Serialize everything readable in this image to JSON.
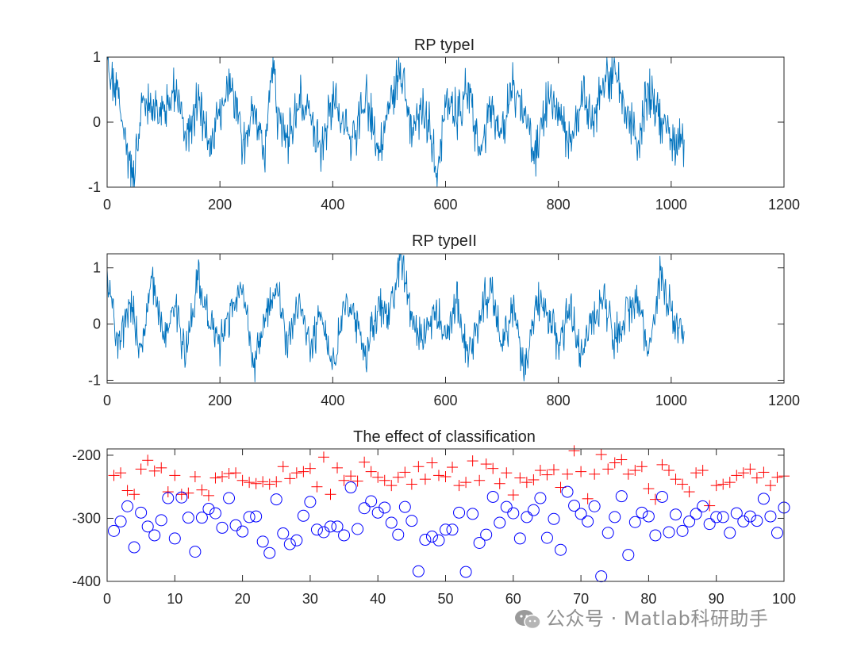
{
  "watermark": {
    "text": "公众号 · Matlab科研助手",
    "icon": "wechat-icon"
  },
  "chart_data": [
    {
      "type": "line",
      "title": "RP typeI",
      "xlabel": "",
      "ylabel": "",
      "xlim": [
        0,
        1200
      ],
      "ylim": [
        -1,
        1
      ],
      "xticks": [
        0,
        200,
        400,
        600,
        800,
        1000,
        1200
      ],
      "yticks": [
        -1,
        0,
        1
      ],
      "grid": false,
      "color": "#0072BD",
      "n_points": 1024,
      "x": [
        0,
        20,
        40,
        47,
        60,
        80,
        100,
        120,
        140,
        160,
        180,
        200,
        220,
        240,
        260,
        280,
        293,
        300,
        320,
        340,
        360,
        380,
        400,
        420,
        440,
        460,
        480,
        500,
        520,
        540,
        560,
        580,
        583,
        600,
        620,
        640,
        660,
        680,
        700,
        720,
        740,
        760,
        780,
        800,
        820,
        840,
        860,
        880,
        900,
        920,
        940,
        960,
        980,
        1000,
        1024
      ],
      "y": [
        0.9,
        0.4,
        -0.6,
        -1.0,
        0.3,
        0.1,
        0.2,
        0.5,
        -0.2,
        0.3,
        -0.4,
        0.1,
        0.6,
        -0.3,
        0.2,
        -0.5,
        0.95,
        0.2,
        -0.3,
        0.4,
        0.1,
        -0.4,
        0.3,
        0.0,
        -0.3,
        0.4,
        -0.5,
        0.2,
        0.8,
        -0.2,
        0.3,
        -0.4,
        -1.0,
        0.3,
        0.1,
        0.5,
        -0.4,
        0.2,
        -0.2,
        0.6,
        0.1,
        -0.5,
        0.3,
        0.2,
        -0.3,
        0.4,
        0.0,
        0.6,
        0.8,
        0.2,
        -0.4,
        0.5,
        0.1,
        -0.3,
        -0.4
      ]
    },
    {
      "type": "line",
      "title": "RP typeII",
      "xlabel": "",
      "ylabel": "",
      "xlim": [
        0,
        1200
      ],
      "ylim": [
        -1.05,
        1.25
      ],
      "xticks": [
        0,
        200,
        400,
        600,
        800,
        1000,
        1200
      ],
      "yticks": [
        -1,
        0,
        1
      ],
      "grid": false,
      "color": "#0072BD",
      "n_points": 1024,
      "x": [
        0,
        20,
        40,
        60,
        80,
        100,
        120,
        140,
        160,
        180,
        200,
        220,
        240,
        260,
        280,
        300,
        320,
        340,
        360,
        380,
        400,
        420,
        440,
        460,
        480,
        500,
        520,
        540,
        560,
        580,
        600,
        620,
        640,
        660,
        680,
        700,
        720,
        740,
        760,
        780,
        800,
        820,
        840,
        860,
        880,
        900,
        920,
        940,
        960,
        980,
        1000,
        1024
      ],
      "y": [
        0.7,
        -0.3,
        0.4,
        -0.5,
        0.9,
        -0.2,
        0.3,
        -0.6,
        0.8,
        0.1,
        -0.4,
        0.3,
        0.7,
        -0.8,
        0.2,
        0.6,
        -0.3,
        0.5,
        -0.4,
        0.2,
        -0.9,
        0.4,
        0.1,
        -0.5,
        0.3,
        0.2,
        1.2,
        0.1,
        -0.4,
        0.3,
        -0.3,
        0.5,
        -0.6,
        0.2,
        0.6,
        -0.4,
        0.3,
        -0.8,
        0.4,
        0.2,
        -0.4,
        0.3,
        -0.6,
        0.1,
        0.4,
        -0.3,
        0.2,
        0.4,
        -0.5,
        0.9,
        0.2,
        -0.3
      ]
    },
    {
      "type": "scatter",
      "title": "The effect of classification",
      "xlabel": "",
      "ylabel": "",
      "xlim": [
        0,
        100
      ],
      "ylim": [
        -400,
        -190
      ],
      "xticks": [
        0,
        10,
        20,
        30,
        40,
        50,
        60,
        70,
        80,
        90,
        100
      ],
      "yticks": [
        -400,
        -300,
        -200
      ],
      "grid": false,
      "series": [
        {
          "marker": "plus",
          "color": "#FF0000",
          "x": [
            1,
            2,
            3,
            4,
            5,
            6,
            7,
            8,
            9,
            10,
            11,
            12,
            13,
            14,
            15,
            16,
            17,
            18,
            19,
            20,
            21,
            22,
            23,
            24,
            25,
            26,
            27,
            28,
            29,
            30,
            31,
            32,
            33,
            34,
            35,
            36,
            37,
            38,
            39,
            40,
            41,
            42,
            43,
            44,
            45,
            46,
            47,
            48,
            49,
            50,
            51,
            52,
            53,
            54,
            55,
            56,
            57,
            58,
            59,
            60,
            61,
            62,
            63,
            64,
            65,
            66,
            67,
            68,
            69,
            70,
            71,
            72,
            73,
            74,
            75,
            76,
            77,
            78,
            79,
            80,
            81,
            82,
            83,
            84,
            85,
            86,
            87,
            88,
            89,
            90,
            91,
            92,
            93,
            94,
            95,
            96,
            97,
            98,
            99,
            100
          ],
          "y": [
            -232,
            -228,
            -256,
            -262,
            -222,
            -208,
            -225,
            -220,
            -258,
            -232,
            -262,
            -260,
            -234,
            -255,
            -264,
            -236,
            -234,
            -229,
            -228,
            -240,
            -243,
            -245,
            -242,
            -246,
            -242,
            -218,
            -237,
            -228,
            -226,
            -221,
            -250,
            -203,
            -262,
            -220,
            -240,
            -233,
            -241,
            -211,
            -226,
            -235,
            -240,
            -248,
            -235,
            -227,
            -246,
            -218,
            -238,
            -212,
            -232,
            -234,
            -219,
            -248,
            -243,
            -209,
            -240,
            -214,
            -221,
            -245,
            -228,
            -263,
            -236,
            -243,
            -239,
            -224,
            -231,
            -223,
            -251,
            -230,
            -193,
            -226,
            -269,
            -230,
            -199,
            -222,
            -212,
            -207,
            -230,
            -224,
            -218,
            -253,
            -270,
            -215,
            -224,
            -238,
            -246,
            -258,
            -228,
            -224,
            -280,
            -248,
            -246,
            -243,
            -232,
            -228,
            -222,
            -236,
            -227,
            -248,
            -235,
            -233
          ]
        },
        {
          "marker": "circle",
          "color": "#0000FF",
          "x": [
            1,
            2,
            3,
            4,
            5,
            6,
            7,
            8,
            9,
            10,
            11,
            12,
            13,
            14,
            15,
            16,
            17,
            18,
            19,
            20,
            21,
            22,
            23,
            24,
            25,
            26,
            27,
            28,
            29,
            30,
            31,
            32,
            33,
            34,
            35,
            36,
            37,
            38,
            39,
            40,
            41,
            42,
            43,
            44,
            45,
            46,
            47,
            48,
            49,
            50,
            51,
            52,
            53,
            54,
            55,
            56,
            57,
            58,
            59,
            60,
            61,
            62,
            63,
            64,
            65,
            66,
            67,
            68,
            69,
            70,
            71,
            72,
            73,
            74,
            75,
            76,
            77,
            78,
            79,
            80,
            81,
            82,
            83,
            84,
            85,
            86,
            87,
            88,
            89,
            90,
            91,
            92,
            93,
            94,
            95,
            96,
            97,
            98,
            99,
            100
          ],
          "y": [
            -320,
            -305,
            -281,
            -346,
            -291,
            -313,
            -327,
            -303,
            -268,
            -332,
            -267,
            -299,
            -353,
            -299,
            -285,
            -292,
            -315,
            -268,
            -311,
            -321,
            -298,
            -297,
            -337,
            -355,
            -270,
            -324,
            -341,
            -335,
            -296,
            -274,
            -318,
            -322,
            -313,
            -313,
            -327,
            -251,
            -317,
            -284,
            -273,
            -291,
            -283,
            -307,
            -326,
            -282,
            -304,
            -384,
            -334,
            -329,
            -335,
            -318,
            -318,
            -291,
            -385,
            -293,
            -339,
            -326,
            -266,
            -307,
            -282,
            -292,
            -332,
            -298,
            -287,
            -268,
            -331,
            -301,
            -350,
            -258,
            -280,
            -293,
            -305,
            -281,
            -392,
            -323,
            -298,
            -265,
            -358,
            -306,
            -291,
            -297,
            -327,
            -266,
            -322,
            -294,
            -320,
            -305,
            -293,
            -281,
            -309,
            -298,
            -298,
            -323,
            -292,
            -305,
            -297,
            -304,
            -269,
            -297,
            -323,
            -283
          ]
        }
      ]
    }
  ]
}
